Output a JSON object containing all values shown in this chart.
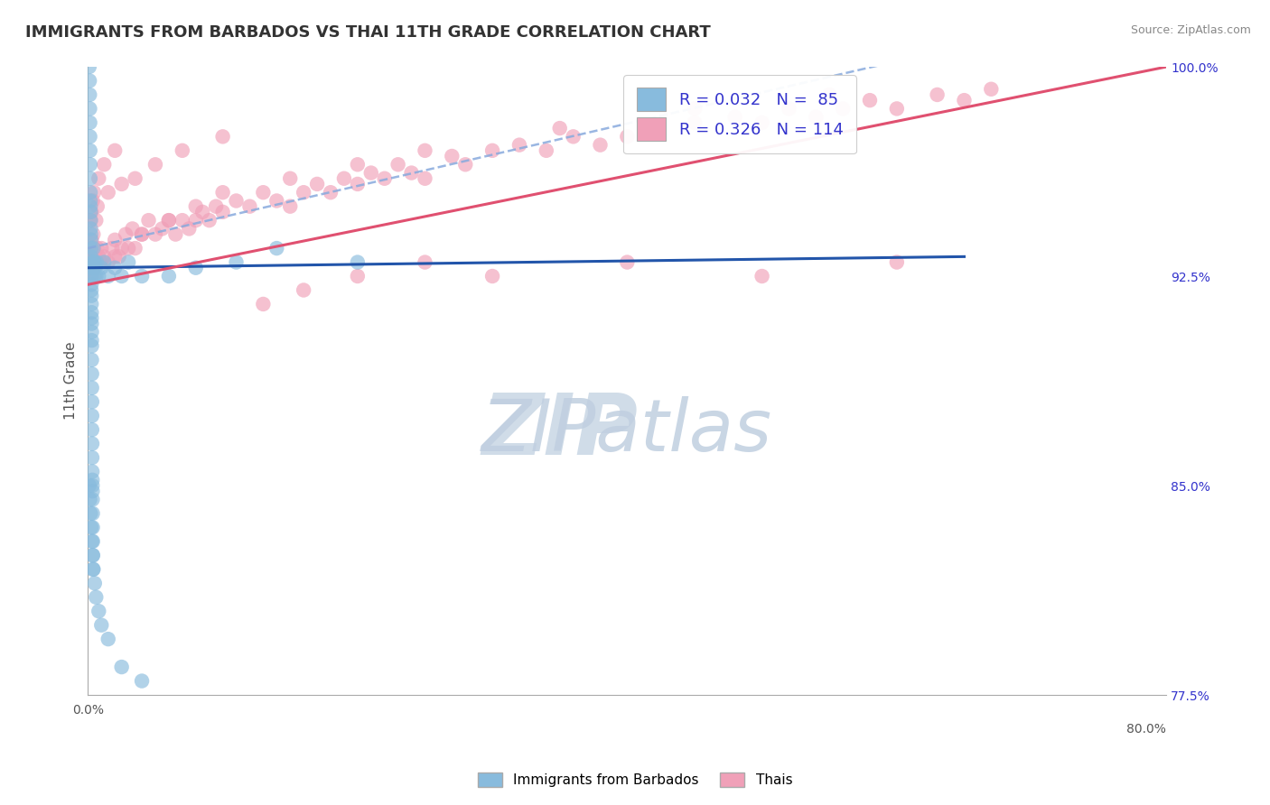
{
  "title": "IMMIGRANTS FROM BARBADOS VS THAI 11TH GRADE CORRELATION CHART",
  "source_text": "Source: ZipAtlas.com",
  "ylabel": "11th Grade",
  "x_min": 0.0,
  "x_max": 80.0,
  "y_min": 77.5,
  "y_max": 100.0,
  "right_yticks": [
    100.0,
    92.5,
    85.0,
    77.5
  ],
  "right_yticklabels": [
    "100.0%",
    "92.5%",
    "85.0%",
    "77.5%"
  ],
  "r_n_text_color": "#3333cc",
  "blue_scatter_color": "#88bbdd",
  "pink_scatter_color": "#f0a0b8",
  "blue_line_color": "#2255aa",
  "pink_line_color": "#e05070",
  "dashed_line_color": "#88aadd",
  "watermark_zip_color": "#d0dce8",
  "watermark_atlas_color": "#c0cfe0",
  "background_color": "#ffffff",
  "grid_color": "#cccccc",
  "title_color": "#333333",
  "blue_line_x0": 0.0,
  "blue_line_x1": 65.0,
  "blue_line_y0": 92.8,
  "blue_line_y1": 93.2,
  "pink_line_x0": 0.0,
  "pink_line_x1": 80.0,
  "pink_line_y0": 92.2,
  "pink_line_y1": 100.0,
  "dashed_line_x0": 0.0,
  "dashed_line_x1": 60.0,
  "dashed_line_y0": 93.5,
  "dashed_line_y1": 100.2,
  "blue_x": [
    0.1,
    0.12,
    0.13,
    0.14,
    0.15,
    0.15,
    0.16,
    0.17,
    0.17,
    0.18,
    0.18,
    0.19,
    0.2,
    0.2,
    0.21,
    0.22,
    0.22,
    0.23,
    0.23,
    0.24,
    0.24,
    0.25,
    0.25,
    0.25,
    0.26,
    0.26,
    0.27,
    0.27,
    0.27,
    0.28,
    0.28,
    0.28,
    0.28,
    0.29,
    0.29,
    0.3,
    0.3,
    0.3,
    0.31,
    0.31,
    0.32,
    0.33,
    0.33,
    0.34,
    0.34,
    0.35,
    0.35,
    0.36,
    0.37,
    0.38,
    0.4,
    0.42,
    0.43,
    0.45,
    0.5,
    0.55,
    0.6,
    0.65,
    0.8,
    1.0,
    1.2,
    1.5,
    2.0,
    2.5,
    3.0,
    4.0,
    0.1,
    0.15,
    0.2,
    0.25,
    0.3,
    0.35,
    0.4,
    0.5,
    0.6,
    0.8,
    1.0,
    1.5,
    2.5,
    4.0,
    6.0,
    8.0,
    11.0,
    14.0,
    20.0
  ],
  "blue_y": [
    100.0,
    99.5,
    99.0,
    98.5,
    98.0,
    97.5,
    97.0,
    96.5,
    96.0,
    95.5,
    95.2,
    95.0,
    94.8,
    94.5,
    94.2,
    94.0,
    93.8,
    93.5,
    93.2,
    93.0,
    92.8,
    92.5,
    92.2,
    92.0,
    91.8,
    91.5,
    91.2,
    91.0,
    90.8,
    90.5,
    90.2,
    90.0,
    89.5,
    89.0,
    88.5,
    88.0,
    87.5,
    87.0,
    86.5,
    86.0,
    85.5,
    85.2,
    85.0,
    84.8,
    84.5,
    84.0,
    83.5,
    83.0,
    82.5,
    82.0,
    93.5,
    93.0,
    92.8,
    92.5,
    93.0,
    92.8,
    92.5,
    93.0,
    92.5,
    92.8,
    93.0,
    92.5,
    92.8,
    92.5,
    93.0,
    92.5,
    85.0,
    84.5,
    84.0,
    83.5,
    83.0,
    82.5,
    82.0,
    81.5,
    81.0,
    80.5,
    80.0,
    79.5,
    78.5,
    78.0,
    92.5,
    92.8,
    93.0,
    93.5,
    93.0
  ],
  "pink_x": [
    0.15,
    0.18,
    0.2,
    0.22,
    0.25,
    0.28,
    0.3,
    0.32,
    0.35,
    0.38,
    0.4,
    0.45,
    0.5,
    0.55,
    0.6,
    0.7,
    0.8,
    0.9,
    1.0,
    1.2,
    1.5,
    1.8,
    2.0,
    2.3,
    2.5,
    2.8,
    3.0,
    3.3,
    3.5,
    4.0,
    4.5,
    5.0,
    5.5,
    6.0,
    6.5,
    7.0,
    7.5,
    8.0,
    8.5,
    9.0,
    9.5,
    10.0,
    11.0,
    12.0,
    13.0,
    14.0,
    15.0,
    16.0,
    17.0,
    18.0,
    19.0,
    20.0,
    21.0,
    22.0,
    23.0,
    24.0,
    25.0,
    27.0,
    28.0,
    30.0,
    32.0,
    34.0,
    36.0,
    38.0,
    40.0,
    42.0,
    45.0,
    48.0,
    50.0,
    52.0,
    54.0,
    56.0,
    58.0,
    60.0,
    63.0,
    65.0,
    67.0,
    0.5,
    1.0,
    2.0,
    4.0,
    6.0,
    8.0,
    10.0,
    15.0,
    20.0,
    25.0,
    35.0,
    45.0,
    55.0,
    0.3,
    0.4,
    0.6,
    0.7,
    1.5,
    2.5,
    3.5,
    5.0,
    7.0,
    10.0,
    13.0,
    16.0,
    20.0,
    25.0,
    30.0,
    40.0,
    50.0,
    60.0,
    0.2,
    0.25,
    0.35,
    0.45,
    0.8,
    1.2,
    2.0
  ],
  "pink_y": [
    93.0,
    93.5,
    92.8,
    93.2,
    92.5,
    93.8,
    93.0,
    92.8,
    93.5,
    93.2,
    93.0,
    93.5,
    92.8,
    93.2,
    93.0,
    93.5,
    93.2,
    93.0,
    93.5,
    93.2,
    93.0,
    93.5,
    93.8,
    93.2,
    93.5,
    94.0,
    93.5,
    94.2,
    93.5,
    94.0,
    94.5,
    94.0,
    94.2,
    94.5,
    94.0,
    94.5,
    94.2,
    94.5,
    94.8,
    94.5,
    95.0,
    94.8,
    95.2,
    95.0,
    95.5,
    95.2,
    95.0,
    95.5,
    95.8,
    95.5,
    96.0,
    95.8,
    96.2,
    96.0,
    96.5,
    96.2,
    96.0,
    96.8,
    96.5,
    97.0,
    97.2,
    97.0,
    97.5,
    97.2,
    97.5,
    97.8,
    98.0,
    98.2,
    98.0,
    98.5,
    98.2,
    98.5,
    98.8,
    98.5,
    99.0,
    98.8,
    99.2,
    92.5,
    93.0,
    93.2,
    94.0,
    94.5,
    95.0,
    95.5,
    96.0,
    96.5,
    97.0,
    97.8,
    98.5,
    99.0,
    93.5,
    94.0,
    94.5,
    95.0,
    95.5,
    95.8,
    96.0,
    96.5,
    97.0,
    97.5,
    91.5,
    92.0,
    92.5,
    93.0,
    92.5,
    93.0,
    92.5,
    93.0,
    94.5,
    94.8,
    95.2,
    95.5,
    96.0,
    96.5,
    97.0
  ]
}
